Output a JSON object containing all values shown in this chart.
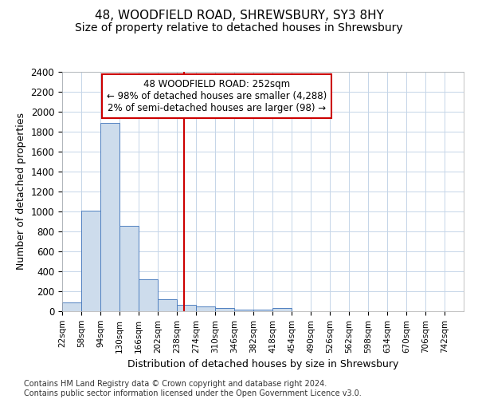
{
  "title1": "48, WOODFIELD ROAD, SHREWSBURY, SY3 8HY",
  "title2": "Size of property relative to detached houses in Shrewsbury",
  "xlabel": "Distribution of detached houses by size in Shrewsbury",
  "ylabel": "Number of detached properties",
  "bin_labels": [
    "22sqm",
    "58sqm",
    "94sqm",
    "130sqm",
    "166sqm",
    "202sqm",
    "238sqm",
    "274sqm",
    "310sqm",
    "346sqm",
    "382sqm",
    "418sqm",
    "454sqm",
    "490sqm",
    "526sqm",
    "562sqm",
    "598sqm",
    "634sqm",
    "670sqm",
    "706sqm",
    "742sqm"
  ],
  "bin_edges": [
    22,
    58,
    94,
    130,
    166,
    202,
    238,
    274,
    310,
    346,
    382,
    418,
    454,
    490,
    526,
    562,
    598,
    634,
    670,
    706,
    742
  ],
  "bar_heights": [
    90,
    1010,
    1890,
    860,
    320,
    120,
    65,
    50,
    35,
    20,
    20,
    30,
    0,
    0,
    0,
    0,
    0,
    0,
    0,
    0
  ],
  "bar_color": "#cddcec",
  "bar_edge_color": "#5080c0",
  "property_size": 252,
  "red_line_color": "#cc0000",
  "annotation_line1": "48 WOODFIELD ROAD: 252sqm",
  "annotation_line2": "← 98% of detached houses are smaller (4,288)",
  "annotation_line3": "2% of semi-detached houses are larger (98) →",
  "annotation_box_color": "#ffffff",
  "annotation_box_edge": "#cc0000",
  "ylim": [
    0,
    2400
  ],
  "yticks": [
    0,
    200,
    400,
    600,
    800,
    1000,
    1200,
    1400,
    1600,
    1800,
    2000,
    2200,
    2400
  ],
  "footnote": "Contains HM Land Registry data © Crown copyright and database right 2024.\nContains public sector information licensed under the Open Government Licence v3.0.",
  "title1_fontsize": 11,
  "title2_fontsize": 10,
  "xlabel_fontsize": 9,
  "ylabel_fontsize": 9,
  "footnote_fontsize": 7
}
